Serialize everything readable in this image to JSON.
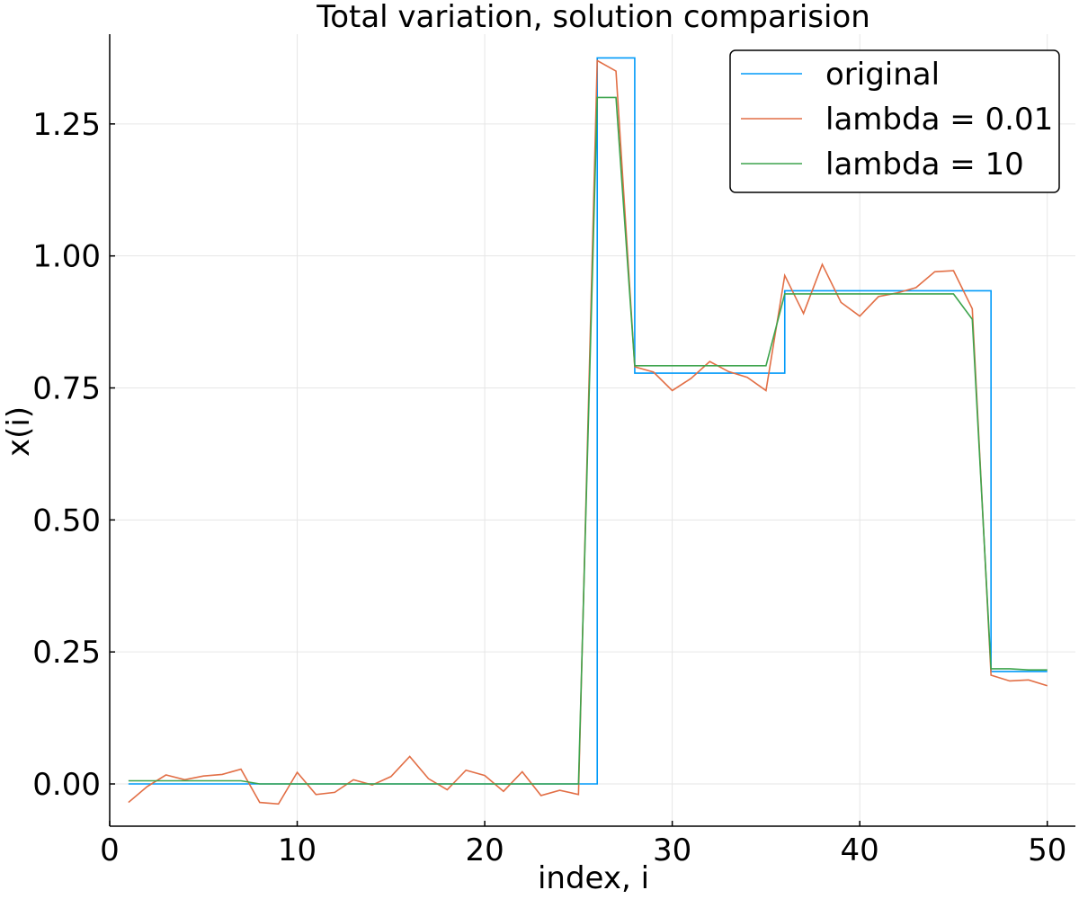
{
  "chart_data": {
    "type": "line",
    "title": "Total variation, solution comparision",
    "xlabel": "index, i",
    "ylabel": "x(i)",
    "xlim": [
      0,
      51.5
    ],
    "ylim": [
      -0.08,
      1.42
    ],
    "xticks": [
      0,
      10,
      20,
      30,
      40,
      50
    ],
    "xtick_labels": [
      "0",
      "10",
      "20",
      "30",
      "40",
      "50"
    ],
    "yticks": [
      0.0,
      0.25,
      0.5,
      0.75,
      1.0,
      1.25
    ],
    "ytick_labels": [
      "0.00",
      "0.25",
      "0.50",
      "0.75",
      "1.00",
      "1.25"
    ],
    "grid": true,
    "legend_position": "top-right",
    "series": [
      {
        "name": "original",
        "color": "#009af9",
        "step": true,
        "x": [
          1,
          2,
          3,
          4,
          5,
          6,
          7,
          8,
          9,
          10,
          11,
          12,
          13,
          14,
          15,
          16,
          17,
          18,
          19,
          20,
          21,
          22,
          23,
          24,
          25,
          26,
          27,
          28,
          29,
          30,
          31,
          32,
          33,
          34,
          35,
          36,
          37,
          38,
          39,
          40,
          41,
          42,
          43,
          44,
          45,
          46,
          47,
          48,
          49,
          50
        ],
        "values": [
          0,
          0,
          0,
          0,
          0,
          0,
          0,
          0,
          0,
          0,
          0,
          0,
          0,
          0,
          0,
          0,
          0,
          0,
          0,
          0,
          0,
          0,
          0,
          0,
          0,
          1.375,
          1.375,
          0.778,
          0.778,
          0.778,
          0.778,
          0.778,
          0.778,
          0.778,
          0.778,
          0.934,
          0.934,
          0.934,
          0.934,
          0.934,
          0.934,
          0.934,
          0.934,
          0.934,
          0.934,
          0.934,
          0.213,
          0.213,
          0.213,
          0.213
        ]
      },
      {
        "name": "lambda = 0.01",
        "color": "#e26f46",
        "step": false,
        "x": [
          1,
          2,
          3,
          4,
          5,
          6,
          7,
          8,
          9,
          10,
          11,
          12,
          13,
          14,
          15,
          16,
          17,
          18,
          19,
          20,
          21,
          22,
          23,
          24,
          25,
          26,
          27,
          28,
          29,
          30,
          31,
          32,
          33,
          34,
          35,
          36,
          37,
          38,
          39,
          40,
          41,
          42,
          43,
          44,
          45,
          46,
          47,
          48,
          49,
          50
        ],
        "values": [
          -0.035,
          -0.005,
          0.017,
          0.008,
          0.015,
          0.018,
          0.028,
          -0.035,
          -0.038,
          0.022,
          -0.02,
          -0.016,
          0.008,
          -0.002,
          0.014,
          0.052,
          0.01,
          -0.011,
          0.026,
          0.016,
          -0.014,
          0.023,
          -0.022,
          -0.012,
          -0.02,
          1.37,
          1.35,
          0.79,
          0.78,
          0.745,
          0.768,
          0.8,
          0.781,
          0.77,
          0.745,
          0.963,
          0.891,
          0.984,
          0.912,
          0.886,
          0.923,
          0.93,
          0.94,
          0.97,
          0.972,
          0.9,
          0.206,
          0.195,
          0.197,
          0.186
        ]
      },
      {
        "name": "lambda = 10",
        "color": "#3da44d",
        "step": false,
        "x": [
          1,
          7,
          8,
          25,
          26,
          27,
          28,
          35,
          36,
          45,
          46,
          47,
          48,
          49,
          50
        ],
        "values": [
          0.006,
          0.006,
          0.0,
          0.0,
          1.3,
          1.3,
          0.792,
          0.792,
          0.928,
          0.928,
          0.88,
          0.218,
          0.218,
          0.216,
          0.216
        ]
      }
    ]
  }
}
